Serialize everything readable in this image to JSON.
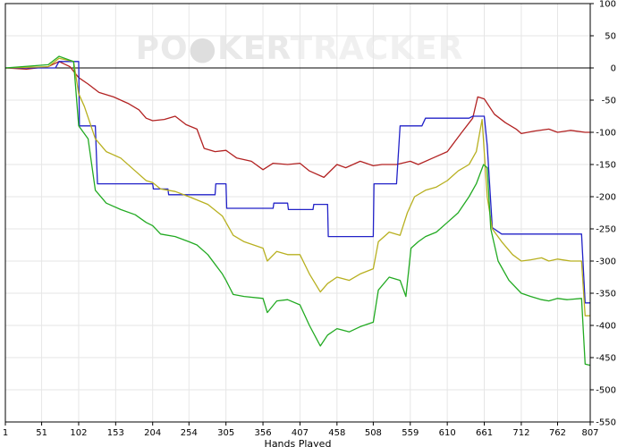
{
  "watermark": {
    "text_a": "PO",
    "text_b": "KER",
    "text_c": "TRACKER"
  },
  "chart_data": {
    "type": "line",
    "title": "",
    "xlabel": "Hands Played",
    "ylabel": "",
    "xlim": [
      1,
      807
    ],
    "ylim": [
      -550,
      100
    ],
    "x_ticks": [
      1,
      51,
      102,
      153,
      204,
      254,
      305,
      356,
      407,
      458,
      508,
      559,
      610,
      661,
      712,
      762,
      807
    ],
    "y_ticks": [
      100,
      50,
      0,
      -50,
      -100,
      -150,
      -200,
      -250,
      -300,
      -350,
      -400,
      -450,
      -500,
      -550
    ],
    "grid": true,
    "legend": "none",
    "series": [
      {
        "color": "#b22222",
        "points": [
          [
            1,
            0
          ],
          [
            30,
            -2
          ],
          [
            60,
            2
          ],
          [
            75,
            10
          ],
          [
            90,
            2
          ],
          [
            102,
            -15
          ],
          [
            115,
            -25
          ],
          [
            130,
            -38
          ],
          [
            150,
            -45
          ],
          [
            170,
            -55
          ],
          [
            185,
            -65
          ],
          [
            195,
            -78
          ],
          [
            204,
            -82
          ],
          [
            220,
            -80
          ],
          [
            235,
            -75
          ],
          [
            250,
            -88
          ],
          [
            265,
            -95
          ],
          [
            275,
            -125
          ],
          [
            290,
            -130
          ],
          [
            305,
            -128
          ],
          [
            320,
            -140
          ],
          [
            340,
            -145
          ],
          [
            356,
            -158
          ],
          [
            370,
            -148
          ],
          [
            390,
            -150
          ],
          [
            407,
            -148
          ],
          [
            420,
            -160
          ],
          [
            440,
            -170
          ],
          [
            458,
            -150
          ],
          [
            470,
            -155
          ],
          [
            490,
            -145
          ],
          [
            508,
            -152
          ],
          [
            520,
            -150
          ],
          [
            540,
            -150
          ],
          [
            559,
            -145
          ],
          [
            570,
            -150
          ],
          [
            590,
            -140
          ],
          [
            610,
            -130
          ],
          [
            630,
            -100
          ],
          [
            645,
            -78
          ],
          [
            652,
            -45
          ],
          [
            661,
            -48
          ],
          [
            675,
            -72
          ],
          [
            690,
            -85
          ],
          [
            705,
            -95
          ],
          [
            712,
            -102
          ],
          [
            730,
            -98
          ],
          [
            750,
            -95
          ],
          [
            762,
            -100
          ],
          [
            780,
            -97
          ],
          [
            800,
            -100
          ],
          [
            807,
            -100
          ]
        ]
      },
      {
        "color": "#2222c8",
        "points": [
          [
            1,
            0
          ],
          [
            70,
            0
          ],
          [
            75,
            10
          ],
          [
            102,
            10
          ],
          [
            103,
            -90
          ],
          [
            125,
            -90
          ],
          [
            128,
            -180
          ],
          [
            204,
            -180
          ],
          [
            205,
            -188
          ],
          [
            225,
            -188
          ],
          [
            226,
            -197
          ],
          [
            290,
            -197
          ],
          [
            291,
            -180
          ],
          [
            305,
            -180
          ],
          [
            306,
            -218
          ],
          [
            370,
            -218
          ],
          [
            371,
            -210
          ],
          [
            390,
            -210
          ],
          [
            391,
            -220
          ],
          [
            425,
            -220
          ],
          [
            426,
            -212
          ],
          [
            445,
            -212
          ],
          [
            446,
            -262
          ],
          [
            508,
            -262
          ],
          [
            509,
            -180
          ],
          [
            540,
            -180
          ],
          [
            545,
            -90
          ],
          [
            575,
            -90
          ],
          [
            580,
            -78
          ],
          [
            640,
            -78
          ],
          [
            645,
            -75
          ],
          [
            661,
            -75
          ],
          [
            665,
            -120
          ],
          [
            672,
            -248
          ],
          [
            685,
            -258
          ],
          [
            795,
            -258
          ],
          [
            800,
            -365
          ],
          [
            807,
            -365
          ]
        ]
      },
      {
        "color": "#b8b020",
        "points": [
          [
            1,
            0
          ],
          [
            60,
            2
          ],
          [
            75,
            15
          ],
          [
            95,
            10
          ],
          [
            102,
            -40
          ],
          [
            110,
            -60
          ],
          [
            125,
            -110
          ],
          [
            140,
            -130
          ],
          [
            160,
            -140
          ],
          [
            180,
            -160
          ],
          [
            195,
            -175
          ],
          [
            204,
            -178
          ],
          [
            215,
            -188
          ],
          [
            235,
            -192
          ],
          [
            254,
            -200
          ],
          [
            265,
            -205
          ],
          [
            280,
            -212
          ],
          [
            300,
            -230
          ],
          [
            305,
            -240
          ],
          [
            315,
            -260
          ],
          [
            330,
            -270
          ],
          [
            356,
            -280
          ],
          [
            362,
            -300
          ],
          [
            375,
            -285
          ],
          [
            390,
            -290
          ],
          [
            407,
            -290
          ],
          [
            420,
            -320
          ],
          [
            435,
            -348
          ],
          [
            445,
            -335
          ],
          [
            458,
            -325
          ],
          [
            475,
            -330
          ],
          [
            490,
            -320
          ],
          [
            508,
            -312
          ],
          [
            515,
            -270
          ],
          [
            530,
            -255
          ],
          [
            545,
            -260
          ],
          [
            555,
            -225
          ],
          [
            565,
            -200
          ],
          [
            580,
            -190
          ],
          [
            595,
            -185
          ],
          [
            610,
            -175
          ],
          [
            625,
            -160
          ],
          [
            640,
            -150
          ],
          [
            650,
            -130
          ],
          [
            658,
            -80
          ],
          [
            665,
            -200
          ],
          [
            672,
            -250
          ],
          [
            685,
            -270
          ],
          [
            700,
            -290
          ],
          [
            712,
            -300
          ],
          [
            725,
            -298
          ],
          [
            740,
            -295
          ],
          [
            750,
            -300
          ],
          [
            762,
            -297
          ],
          [
            780,
            -300
          ],
          [
            795,
            -300
          ],
          [
            800,
            -385
          ],
          [
            807,
            -385
          ]
        ]
      },
      {
        "color": "#22aa22",
        "points": [
          [
            1,
            0
          ],
          [
            60,
            5
          ],
          [
            75,
            18
          ],
          [
            95,
            10
          ],
          [
            102,
            -90
          ],
          [
            115,
            -110
          ],
          [
            125,
            -190
          ],
          [
            140,
            -210
          ],
          [
            160,
            -220
          ],
          [
            180,
            -228
          ],
          [
            195,
            -240
          ],
          [
            204,
            -245
          ],
          [
            215,
            -258
          ],
          [
            235,
            -262
          ],
          [
            254,
            -270
          ],
          [
            265,
            -275
          ],
          [
            280,
            -290
          ],
          [
            300,
            -320
          ],
          [
            305,
            -330
          ],
          [
            315,
            -352
          ],
          [
            330,
            -355
          ],
          [
            356,
            -358
          ],
          [
            362,
            -380
          ],
          [
            375,
            -362
          ],
          [
            390,
            -360
          ],
          [
            407,
            -368
          ],
          [
            420,
            -400
          ],
          [
            435,
            -432
          ],
          [
            445,
            -415
          ],
          [
            458,
            -405
          ],
          [
            475,
            -410
          ],
          [
            490,
            -402
          ],
          [
            508,
            -395
          ],
          [
            515,
            -345
          ],
          [
            530,
            -325
          ],
          [
            545,
            -330
          ],
          [
            553,
            -355
          ],
          [
            560,
            -280
          ],
          [
            570,
            -270
          ],
          [
            580,
            -262
          ],
          [
            595,
            -255
          ],
          [
            610,
            -240
          ],
          [
            625,
            -225
          ],
          [
            640,
            -200
          ],
          [
            650,
            -180
          ],
          [
            660,
            -150
          ],
          [
            665,
            -155
          ],
          [
            670,
            -250
          ],
          [
            680,
            -300
          ],
          [
            695,
            -330
          ],
          [
            712,
            -350
          ],
          [
            725,
            -355
          ],
          [
            740,
            -360
          ],
          [
            750,
            -362
          ],
          [
            762,
            -358
          ],
          [
            775,
            -360
          ],
          [
            795,
            -358
          ],
          [
            800,
            -460
          ],
          [
            807,
            -462
          ]
        ]
      }
    ]
  }
}
